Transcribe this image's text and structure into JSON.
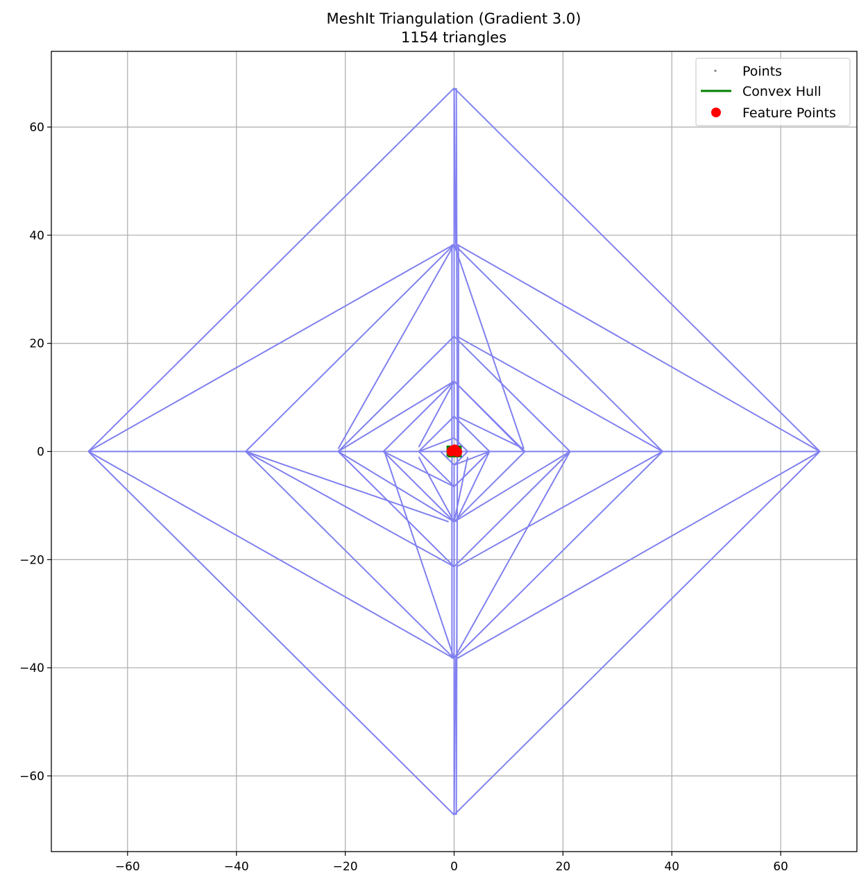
{
  "chart_data": {
    "type": "line",
    "title": "MeshIt Triangulation (Gradient 3.0)",
    "subtitle": "1154 triangles",
    "xlabel": "",
    "ylabel": "",
    "xlim": [
      -74,
      74
    ],
    "ylim": [
      -74,
      74
    ],
    "xticks": [
      -60,
      -40,
      -20,
      0,
      20,
      40,
      60
    ],
    "yticks": [
      -60,
      -40,
      -20,
      0,
      20,
      40,
      60
    ],
    "xtick_labels": [
      "−60",
      "−40",
      "−20",
      "0",
      "20",
      "40",
      "60"
    ],
    "ytick_labels": [
      "−60",
      "−40",
      "−20",
      "0",
      "20",
      "40",
      "60"
    ],
    "grid": true,
    "legend": {
      "placement": "top-right",
      "entries": [
        {
          "label": "Points",
          "marker": "dot-small",
          "color": "#808080"
        },
        {
          "label": "Convex Hull",
          "marker": "line",
          "color": "#008000"
        },
        {
          "label": "Feature Points",
          "marker": "dot",
          "color": "#ff0000"
        }
      ]
    },
    "colors": {
      "mesh": "#8080f0",
      "points": "#808080",
      "hull": "#008000",
      "feature": "#ff0000"
    },
    "mesh_edges": [
      [
        [
          0,
          67.2
        ],
        [
          67.2,
          0
        ]
      ],
      [
        [
          67.2,
          0
        ],
        [
          0,
          -67.2
        ]
      ],
      [
        [
          0,
          -67.2
        ],
        [
          -67.2,
          0
        ]
      ],
      [
        [
          -67.2,
          0
        ],
        [
          0,
          67.2
        ]
      ],
      [
        [
          0,
          67.2
        ],
        [
          0.3,
          38.3
        ]
      ],
      [
        [
          67.2,
          0
        ],
        [
          38.3,
          0
        ]
      ],
      [
        [
          0,
          -67.2
        ],
        [
          0.3,
          -38.3
        ]
      ],
      [
        [
          -67.2,
          0
        ],
        [
          -38.3,
          0
        ]
      ],
      [
        [
          -67.2,
          0
        ],
        [
          0,
          38.3
        ]
      ],
      [
        [
          67.2,
          0
        ],
        [
          0.5,
          38.3
        ]
      ],
      [
        [
          67.2,
          0
        ],
        [
          0.5,
          -38.3
        ]
      ],
      [
        [
          -67.2,
          0
        ],
        [
          0,
          -38.3
        ]
      ],
      [
        [
          0,
          38.3
        ],
        [
          38.3,
          0
        ]
      ],
      [
        [
          38.3,
          0
        ],
        [
          0,
          -38.3
        ]
      ],
      [
        [
          0,
          -38.3
        ],
        [
          -38.3,
          0
        ]
      ],
      [
        [
          -38.3,
          0
        ],
        [
          0,
          38.3
        ]
      ],
      [
        [
          0,
          38.3
        ],
        [
          0,
          21.3
        ]
      ],
      [
        [
          38.3,
          0
        ],
        [
          21.3,
          0
        ]
      ],
      [
        [
          0,
          -38.3
        ],
        [
          0,
          -21.3
        ]
      ],
      [
        [
          -38.3,
          0
        ],
        [
          -21.3,
          0
        ]
      ],
      [
        [
          0,
          38.3
        ],
        [
          -21.3,
          0.5
        ]
      ],
      [
        [
          0,
          38.3
        ],
        [
          12.8,
          0.5
        ]
      ],
      [
        [
          38.3,
          0
        ],
        [
          0.5,
          -21.3
        ]
      ],
      [
        [
          38.3,
          0
        ],
        [
          0.5,
          21.3
        ]
      ],
      [
        [
          0,
          -38.3
        ],
        [
          21.3,
          0
        ]
      ],
      [
        [
          0,
          -38.3
        ],
        [
          -12.8,
          0
        ]
      ],
      [
        [
          -38.3,
          0
        ],
        [
          0,
          -21.3
        ]
      ],
      [
        [
          -38.3,
          0
        ],
        [
          -1,
          -13
        ]
      ],
      [
        [
          0,
          21.3
        ],
        [
          21.3,
          0
        ]
      ],
      [
        [
          21.3,
          0
        ],
        [
          0,
          -21.3
        ]
      ],
      [
        [
          0,
          -21.3
        ],
        [
          -21.3,
          0
        ]
      ],
      [
        [
          -21.3,
          0
        ],
        [
          0,
          21.3
        ]
      ],
      [
        [
          0,
          21.3
        ],
        [
          0,
          13
        ]
      ],
      [
        [
          21.3,
          0
        ],
        [
          13,
          0
        ]
      ],
      [
        [
          0,
          -21.3
        ],
        [
          0,
          -13
        ]
      ],
      [
        [
          -21.3,
          0
        ],
        [
          -13,
          0
        ]
      ],
      [
        [
          -21.3,
          0
        ],
        [
          0,
          13
        ]
      ],
      [
        [
          0,
          13
        ],
        [
          12.8,
          0
        ]
      ],
      [
        [
          21.3,
          0
        ],
        [
          0,
          -13
        ]
      ],
      [
        [
          0,
          -13
        ],
        [
          -21.3,
          0
        ]
      ],
      [
        [
          0,
          13
        ],
        [
          -13,
          0
        ]
      ],
      [
        [
          -13,
          0
        ],
        [
          0,
          -13
        ]
      ],
      [
        [
          0,
          -13
        ],
        [
          13,
          0
        ]
      ],
      [
        [
          13,
          0
        ],
        [
          0,
          13
        ]
      ],
      [
        [
          0,
          13
        ],
        [
          0,
          6.5
        ]
      ],
      [
        [
          13,
          0
        ],
        [
          6.5,
          0
        ]
      ],
      [
        [
          0,
          -13
        ],
        [
          0,
          -6.5
        ]
      ],
      [
        [
          -13,
          0
        ],
        [
          -6.5,
          0
        ]
      ],
      [
        [
          -6.5,
          0.8
        ],
        [
          0,
          13
        ]
      ],
      [
        [
          0.5,
          6.5
        ],
        [
          12.8,
          0.5
        ]
      ],
      [
        [
          6.5,
          0
        ],
        [
          0.3,
          -13
        ]
      ],
      [
        [
          0,
          -6.5
        ],
        [
          -13,
          0
        ]
      ],
      [
        [
          0,
          6.5
        ],
        [
          6.5,
          0
        ]
      ],
      [
        [
          6.5,
          0
        ],
        [
          0,
          -6.5
        ]
      ],
      [
        [
          0,
          -6.5
        ],
        [
          -6.5,
          0
        ]
      ],
      [
        [
          -6.5,
          0
        ],
        [
          0,
          6.5
        ]
      ],
      [
        [
          -6.5,
          0
        ],
        [
          0,
          2.5
        ]
      ],
      [
        [
          0,
          2.5
        ],
        [
          2.5,
          0
        ]
      ],
      [
        [
          2.5,
          0
        ],
        [
          0,
          -2.5
        ]
      ],
      [
        [
          0,
          -2.5
        ],
        [
          -2.5,
          0
        ]
      ],
      [
        [
          0,
          6.5
        ],
        [
          0,
          2.5
        ]
      ],
      [
        [
          6.5,
          0
        ],
        [
          2.5,
          0
        ]
      ],
      [
        [
          0,
          -6.5
        ],
        [
          0,
          -2.5
        ]
      ],
      [
        [
          -2.5,
          0
        ],
        [
          -6.5,
          0
        ]
      ],
      [
        [
          -6.5,
          -1
        ],
        [
          0,
          -13
        ]
      ],
      [
        [
          0,
          -2.5
        ],
        [
          6.5,
          0
        ]
      ],
      [
        [
          0,
          -13
        ],
        [
          2.5,
          -1
        ]
      ],
      [
        [
          0,
          -21.3
        ],
        [
          0,
          -67.2
        ]
      ],
      [
        [
          0,
          21.3
        ],
        [
          0,
          67.2
        ]
      ],
      [
        [
          -67.2,
          0
        ],
        [
          67.2,
          0
        ]
      ],
      [
        [
          0.5,
          21.3
        ],
        [
          0.5,
          38.3
        ]
      ],
      [
        [
          0.5,
          -21.3
        ],
        [
          0.5,
          -38.3
        ]
      ],
      [
        [
          0.4,
          67.2
        ],
        [
          0.6,
          0
        ]
      ],
      [
        [
          0.4,
          -67.2
        ],
        [
          0.6,
          0
        ]
      ],
      [
        [
          -0.4,
          38.3
        ],
        [
          -0.4,
          -38.3
        ]
      ],
      [
        [
          0.8,
          38.3
        ],
        [
          0.8,
          0
        ]
      ]
    ],
    "hull": [
      [
        -1.2,
        -0.9
      ],
      [
        1.2,
        -0.9
      ],
      [
        1.2,
        0.9
      ],
      [
        -1.2,
        0.9
      ]
    ],
    "feature_points": [
      [
        -0.3,
        0.2
      ],
      [
        0.3,
        0.2
      ],
      [
        0.6,
        -0.1
      ],
      [
        -0.5,
        0
      ],
      [
        0.1,
        0.4
      ]
    ]
  }
}
